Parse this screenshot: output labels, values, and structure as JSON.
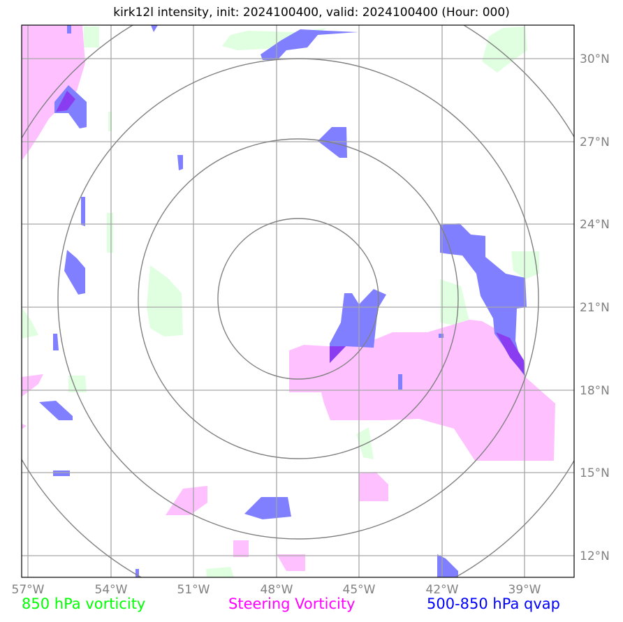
{
  "title": "kirk12l intensity, init: 2024100400, valid: 2024100400 (Hour: 000)",
  "lon_labels": [
    "57°W",
    "54°W",
    "51°W",
    "48°W",
    "45°W",
    "42°W",
    "39°W"
  ],
  "lat_labels": [
    "30°N",
    "27°N",
    "24°N",
    "21°N",
    "18°N",
    "15°N",
    "12°N"
  ],
  "legend": {
    "vorticity": "850 hPa vorticity",
    "steering": "Steering Vorticity",
    "qvap": "500-850 hPa qvap"
  },
  "colors": {
    "vorticity": "#00ff00",
    "steering": "#ff00ff",
    "qvap": "#0000ff",
    "vorticity_fill": "#e0ffe0",
    "steering_fill": "#ffc0ff",
    "qvap_fill": "#7f7fff",
    "grid": "#a6a6a6",
    "rings": "#808080"
  },
  "range_rings_count": 4
}
